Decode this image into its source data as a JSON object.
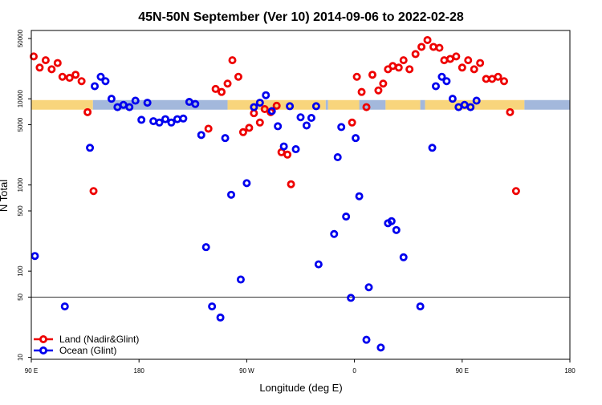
{
  "chart_data": {
    "type": "scatter",
    "title": "45N-50N September (Ver 10)   2014-09-06 to 2022-02-28",
    "xlabel": "Longitude (deg E)",
    "ylabel": "N Total",
    "x_ticks": [
      {
        "pos": 0,
        "label": "90 E"
      },
      {
        "pos": 90,
        "label": "180"
      },
      {
        "pos": 180,
        "label": "90 W"
      },
      {
        "pos": 270,
        "label": "0"
      },
      {
        "pos": 360,
        "label": "90 E"
      },
      {
        "pos": 450,
        "label": "180"
      }
    ],
    "x_range": [
      0,
      450
    ],
    "y_scale": "log",
    "y_range": [
      9.5,
      62000
    ],
    "y_ticks": [
      {
        "value": 10,
        "label": "10"
      },
      {
        "value": 50,
        "label": "50"
      },
      {
        "value": 100,
        "label": "100"
      },
      {
        "value": 500,
        "label": "500"
      },
      {
        "value": 1000,
        "label": "1000"
      },
      {
        "value": 5000,
        "label": "5000"
      },
      {
        "value": 10000,
        "label": "10000"
      },
      {
        "value": 50000,
        "label": "50000"
      }
    ],
    "reference_line": 50,
    "land_mask_y": 8500,
    "land_color": "#f8d57c",
    "ocean_color": "#a3b8dc",
    "mask": [
      {
        "type": "land",
        "x": [
          0,
          51.5
        ]
      },
      {
        "type": "ocean",
        "x": [
          51.5,
          164
        ]
      },
      {
        "type": "land",
        "x": [
          164,
          246
        ]
      },
      {
        "type": "ocean",
        "x": [
          246,
          248
        ]
      },
      {
        "type": "land",
        "x": [
          248,
          274
        ]
      },
      {
        "type": "ocean",
        "x": [
          274,
          296
        ]
      },
      {
        "type": "land",
        "x": [
          296,
          325
        ]
      },
      {
        "type": "ocean",
        "x": [
          325,
          329
        ]
      },
      {
        "type": "land",
        "x": [
          329,
          412
        ]
      },
      {
        "type": "ocean",
        "x": [
          412,
          450
        ]
      }
    ],
    "series": [
      {
        "name": "Land (Nadir&Glint)",
        "color": "#ee0000",
        "points": [
          [
            2,
            31000
          ],
          [
            7,
            23000
          ],
          [
            12,
            28000
          ],
          [
            17,
            22000
          ],
          [
            22,
            26000
          ],
          [
            26,
            18000
          ],
          [
            32,
            17500
          ],
          [
            37,
            19000
          ],
          [
            42,
            16000
          ],
          [
            47,
            7000
          ],
          [
            52,
            850
          ],
          [
            148,
            4500
          ],
          [
            154,
            13000
          ],
          [
            159,
            12000
          ],
          [
            164,
            15000
          ],
          [
            168,
            28000
          ],
          [
            173,
            18000
          ],
          [
            177,
            4100
          ],
          [
            182,
            4600
          ],
          [
            186,
            6800
          ],
          [
            191,
            5300
          ],
          [
            195,
            7600
          ],
          [
            200,
            7000
          ],
          [
            205,
            8300
          ],
          [
            209,
            2400
          ],
          [
            214,
            2250
          ],
          [
            217,
            1020
          ],
          [
            268,
            5300
          ],
          [
            272,
            18000
          ],
          [
            276,
            12000
          ],
          [
            280,
            8000
          ],
          [
            285,
            19000
          ],
          [
            290,
            12500
          ],
          [
            294,
            15000
          ],
          [
            298,
            22000
          ],
          [
            302,
            24000
          ],
          [
            307,
            23000
          ],
          [
            311,
            28000
          ],
          [
            316,
            22000
          ],
          [
            321,
            33000
          ],
          [
            326,
            40000
          ],
          [
            331,
            48000
          ],
          [
            336,
            40000
          ],
          [
            341,
            39000
          ],
          [
            345,
            28000
          ],
          [
            350,
            29000
          ],
          [
            355,
            31000
          ],
          [
            360,
            23000
          ],
          [
            365,
            28000
          ],
          [
            370,
            22000
          ],
          [
            375,
            26000
          ],
          [
            380,
            17000
          ],
          [
            385,
            17000
          ],
          [
            390,
            18000
          ],
          [
            395,
            16000
          ],
          [
            400,
            7000
          ],
          [
            405,
            850
          ]
        ]
      },
      {
        "name": "Ocean (Glint)",
        "color": "#0000ee",
        "points": [
          [
            3,
            150
          ],
          [
            28,
            39
          ],
          [
            49,
            2700
          ],
          [
            53,
            14000
          ],
          [
            58,
            18000
          ],
          [
            62,
            16000
          ],
          [
            67,
            10000
          ],
          [
            72,
            8000
          ],
          [
            77,
            8500
          ],
          [
            82,
            8000
          ],
          [
            87,
            9500
          ],
          [
            92,
            5700
          ],
          [
            97,
            9000
          ],
          [
            102,
            5500
          ],
          [
            107,
            5300
          ],
          [
            112,
            5800
          ],
          [
            117,
            5300
          ],
          [
            122,
            5800
          ],
          [
            127,
            5900
          ],
          [
            132,
            9200
          ],
          [
            137,
            8700
          ],
          [
            142,
            3800
          ],
          [
            146,
            190
          ],
          [
            151,
            39
          ],
          [
            158,
            29
          ],
          [
            162,
            3500
          ],
          [
            167,
            770
          ],
          [
            175,
            80
          ],
          [
            180,
            1050
          ],
          [
            186,
            8000
          ],
          [
            191,
            9000
          ],
          [
            196,
            11000
          ],
          [
            201,
            7200
          ],
          [
            206,
            4800
          ],
          [
            211,
            2800
          ],
          [
            216,
            8200
          ],
          [
            221,
            2600
          ],
          [
            225,
            6100
          ],
          [
            230,
            4900
          ],
          [
            234,
            6000
          ],
          [
            238,
            8200
          ],
          [
            240,
            120
          ],
          [
            253,
            270
          ],
          [
            256,
            2100
          ],
          [
            259,
            4700
          ],
          [
            263,
            430
          ],
          [
            267,
            49
          ],
          [
            271,
            3500
          ],
          [
            274,
            740
          ],
          [
            280,
            16
          ],
          [
            282,
            65
          ],
          [
            292,
            13
          ],
          [
            298,
            360
          ],
          [
            301,
            380
          ],
          [
            305,
            300
          ],
          [
            311,
            145
          ],
          [
            325,
            39
          ],
          [
            335,
            2700
          ],
          [
            338,
            14000
          ],
          [
            343,
            18000
          ],
          [
            347,
            16000
          ],
          [
            352,
            10000
          ],
          [
            357,
            8000
          ],
          [
            362,
            8500
          ],
          [
            367,
            8000
          ],
          [
            372,
            9500
          ]
        ]
      }
    ]
  }
}
